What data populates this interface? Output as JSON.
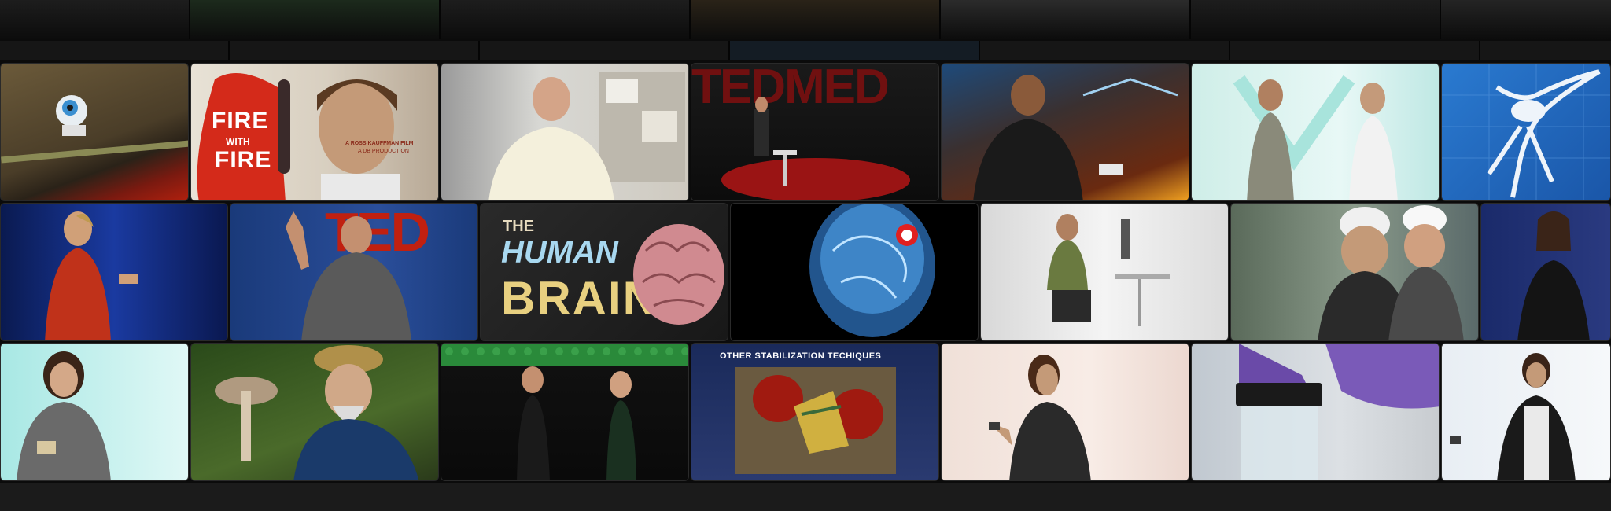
{
  "tiles": [
    {
      "name": "video-thumbnail-toy-figure",
      "text": ""
    },
    {
      "name": "video-thumbnail-fire-with-fire",
      "text": "FIRE",
      "text2": "WITH",
      "text3": "FIRE",
      "credit1": "A ROSS KAUFFMAN FILM",
      "credit2": "A DB PRODUCTION"
    },
    {
      "name": "video-thumbnail-lab-speaker",
      "text": ""
    },
    {
      "name": "video-thumbnail-tedmed-stage",
      "text": "TEDMED"
    },
    {
      "name": "video-thumbnail-speaker-device",
      "text": ""
    },
    {
      "name": "video-thumbnail-two-speakers",
      "text": ""
    },
    {
      "name": "video-thumbnail-mosquito",
      "text": ""
    },
    {
      "name": "video-thumbnail-woman-red-dress",
      "text": ""
    },
    {
      "name": "video-thumbnail-ted-speaker-hand",
      "text": "TED"
    },
    {
      "name": "video-thumbnail-human-brain",
      "text": "THE",
      "text2": "HUMAN",
      "text3": "BRAIN"
    },
    {
      "name": "video-thumbnail-xray-brain",
      "text": ""
    },
    {
      "name": "video-thumbnail-robot-arm",
      "text": ""
    },
    {
      "name": "video-thumbnail-hardhat-men",
      "text": ""
    },
    {
      "name": "video-thumbnail-woman-speaker-blue",
      "text": ""
    },
    {
      "name": "video-thumbnail-woman-cyan",
      "text": ""
    },
    {
      "name": "video-thumbnail-mushroom-man",
      "text": ""
    },
    {
      "name": "video-thumbnail-two-performers",
      "text": ""
    },
    {
      "name": "video-thumbnail-stabilization",
      "text": "OTHER STABILIZATION TECHIQUES"
    },
    {
      "name": "video-thumbnail-man-vest",
      "text": ""
    },
    {
      "name": "video-thumbnail-gloved-jar",
      "text": ""
    },
    {
      "name": "video-thumbnail-woman-remote",
      "text": ""
    }
  ]
}
